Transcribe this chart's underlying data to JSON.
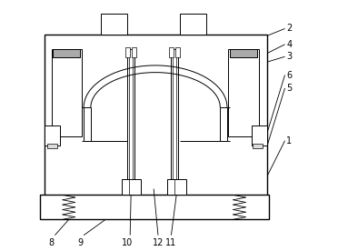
{
  "fig_width": 3.72,
  "fig_height": 2.76,
  "dpi": 100,
  "bg_color": "#ffffff",
  "line_color": "#000000",
  "lw": 0.7,
  "tlw": 1.0,
  "label_fontsize": 7.0
}
